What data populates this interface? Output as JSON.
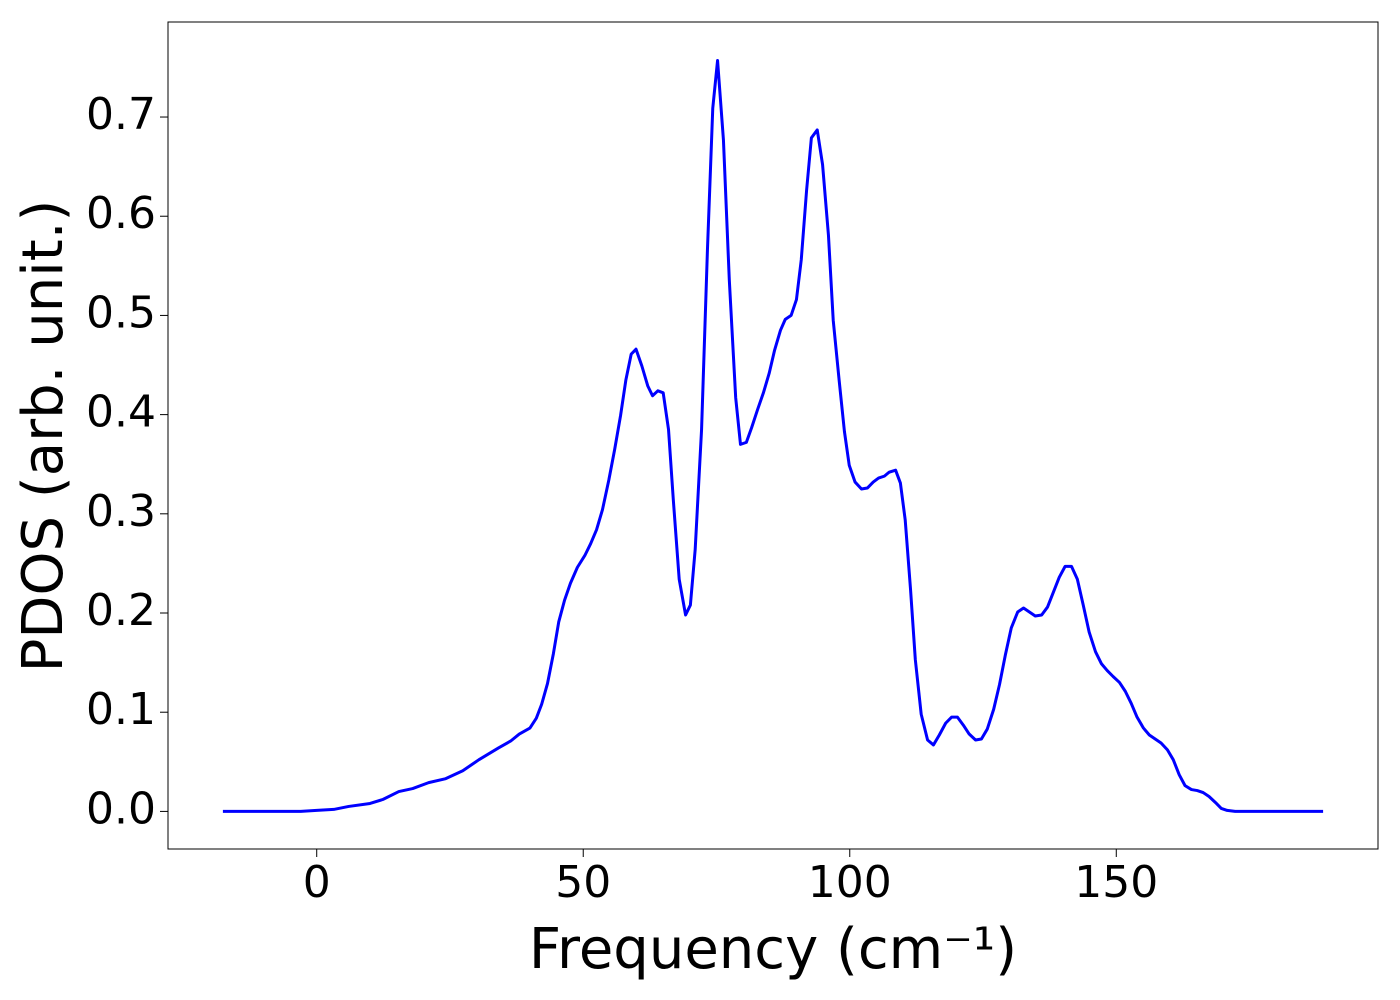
{
  "chart_data": {
    "type": "line",
    "xlabel": "Frequency (cm⁻¹)",
    "ylabel": "PDOS (arb. unit.)",
    "xlim": [
      -27.9,
      199.1
    ],
    "ylim": [
      -0.0379,
      0.7958
    ],
    "xticks": [
      0,
      50,
      100,
      150
    ],
    "yticks": [
      {
        "value": 0,
        "label": "0.0"
      },
      0.1,
      0.2,
      0.3,
      0.4,
      0.5,
      0.6,
      0.7
    ],
    "grid": false,
    "series": [
      {
        "color": "#0000ff",
        "x": [
          -17.6,
          -3,
          0,
          3.2,
          6,
          10,
          12.4,
          15.4,
          18,
          21,
          24.2,
          27.4,
          30.4,
          34.1,
          36.4,
          38,
          40,
          41.2,
          42.2,
          43.3,
          44.4,
          45.4,
          46.5,
          47.6,
          48.9,
          50.3,
          51.4,
          52.5,
          53.6,
          54.8,
          55.9,
          57,
          58,
          59,
          59.9,
          61,
          62.1,
          63,
          64,
          65,
          66,
          66.9,
          68,
          69.2,
          70.1,
          71,
          72.2,
          73.3,
          74.3,
          75.2,
          76.3,
          77.4,
          78.6,
          79.5,
          80.6,
          81.6,
          82.7,
          83.8,
          84.9,
          85.9,
          87,
          87.9,
          89,
          90,
          90.9,
          91.9,
          92.8,
          93.9,
          94.9,
          96,
          96.9,
          98,
          99,
          99.9,
          101,
          102.2,
          103.3,
          104.4,
          105.4,
          106.5,
          107.4,
          108.6,
          109.5,
          110.4,
          111.4,
          112.3,
          113.4,
          114.6,
          115.7,
          116.8,
          118,
          119.1,
          120.2,
          121.3,
          122.4,
          123.6,
          124.7,
          125.8,
          127,
          128.1,
          129.2,
          130.3,
          131.5,
          132.6,
          133.7,
          134.8,
          136,
          137.1,
          138.2,
          139.3,
          140.4,
          141.6,
          142.7,
          143.8,
          144.9,
          146.1,
          147.2,
          148.3,
          149.4,
          150.6,
          151.7,
          152.8,
          153.9,
          155.1,
          156.2,
          157.3,
          158.4,
          159.6,
          160.7,
          161.8,
          162.9,
          164.1,
          165.2,
          166.3,
          167.4,
          168.6,
          169.7,
          170.8,
          172.3,
          188.8
        ],
        "values": [
          0,
          0,
          0.001,
          0.002,
          0.005,
          0.008,
          0.012,
          0.02,
          0.023,
          0.029,
          0.033,
          0.041,
          0.052,
          0.064,
          0.071,
          0.078,
          0.084,
          0.094,
          0.108,
          0.129,
          0.159,
          0.191,
          0.213,
          0.23,
          0.246,
          0.258,
          0.27,
          0.284,
          0.304,
          0.334,
          0.365,
          0.399,
          0.435,
          0.461,
          0.466,
          0.449,
          0.429,
          0.419,
          0.424,
          0.422,
          0.385,
          0.314,
          0.234,
          0.198,
          0.208,
          0.264,
          0.385,
          0.566,
          0.709,
          0.757,
          0.677,
          0.536,
          0.417,
          0.37,
          0.372,
          0.387,
          0.405,
          0.422,
          0.442,
          0.465,
          0.485,
          0.496,
          0.5,
          0.516,
          0.556,
          0.626,
          0.679,
          0.687,
          0.652,
          0.581,
          0.495,
          0.435,
          0.383,
          0.349,
          0.332,
          0.325,
          0.326,
          0.332,
          0.336,
          0.338,
          0.342,
          0.344,
          0.331,
          0.294,
          0.224,
          0.153,
          0.098,
          0.072,
          0.067,
          0.077,
          0.089,
          0.095,
          0.095,
          0.087,
          0.078,
          0.072,
          0.073,
          0.083,
          0.103,
          0.128,
          0.158,
          0.185,
          0.201,
          0.205,
          0.201,
          0.197,
          0.198,
          0.206,
          0.221,
          0.236,
          0.247,
          0.247,
          0.234,
          0.208,
          0.181,
          0.161,
          0.149,
          0.142,
          0.136,
          0.13,
          0.121,
          0.109,
          0.095,
          0.084,
          0.077,
          0.073,
          0.069,
          0.062,
          0.052,
          0.037,
          0.026,
          0.022,
          0.021,
          0.019,
          0.015,
          0.009,
          0.003,
          0.001,
          0,
          0
        ]
      }
    ]
  }
}
